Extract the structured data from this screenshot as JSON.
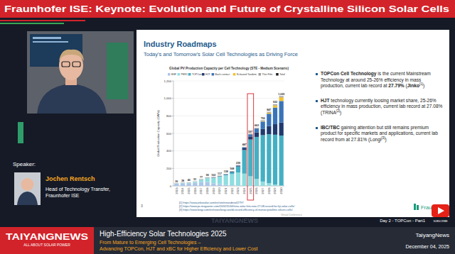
{
  "page": {
    "banner": "Fraunhofer ISE: Keynote: Evolution and Future of Crystalline Silicon Solar Cells",
    "speaker_label": "Speaker:",
    "speaker_name": "Jochen Rentsch",
    "speaker_role": "Head of Technology Transfer, Fraunhofer ISE",
    "event_logo": "TAIYANGNEWS",
    "event_tagline": "ALL ABOUT SOLAR POWER",
    "event_title": "High-Efficiency Solar Technologies 2025",
    "event_subtitle": "From Mature to Emerging Cell Technologies –",
    "event_subtitle2": "Advancing TOPCon, HJT and xBC for Higher Efficiency and Lower Cost",
    "session": "Day 2 - TOPCon - Part1",
    "brand": "TaiyangNews",
    "date": "December 04, 2025",
    "watermark": "TAIYANGNEWS",
    "subscribe": "SUBSCRIBE"
  },
  "slide": {
    "title": "Industry Roadmaps",
    "subtitle": "Today's and Tomorrow's Solar Cell Technologies as Driving Force",
    "bullets": [
      [
        {
          "text": "TOPCon Cell Technology",
          "bold": true
        },
        {
          "text": " is the current Mainstream Technology at around 25-26% efficiency in mass production, current lab record at "
        },
        {
          "text": "27.79%",
          "bold": true
        },
        {
          "text": " ("
        },
        {
          "text": "Jinko",
          "bold": true
        },
        {
          "text": "[1]",
          "sup": true
        },
        {
          "text": ")"
        }
      ],
      [
        {
          "text": "HJT",
          "bold": true
        },
        {
          "text": " technology currently loosing market share, 25-26% efficiency in mass production, current lab record at 27.08% (TRINA"
        },
        {
          "text": "[2]",
          "sup": true
        },
        {
          "text": ")"
        }
      ],
      [
        {
          "text": "IBC/TBC",
          "bold": true
        },
        {
          "text": " gaining attention but still remains premium product for specific markets and applications, current lab record from at 27.81% (Longi"
        },
        {
          "text": "[3]",
          "sup": true
        },
        {
          "text": ")"
        }
      ]
    ],
    "footnotes": [
      "[1] https://www.jinkosolar.com/en/site/newsdetail/2797",
      "[2] https://www.pv-magazine.com/2024/11/04/trina-solar-hits-new-27-08-record-for-hjt-solar-cells/",
      "[3] https://www.longi.com/en/news/longi-world-record-efficiency-of-monocrystalline-silicon-cells/"
    ],
    "page_number": "3",
    "footer": "Virtual Conference",
    "logo": "Fraunhofer"
  },
  "chart_data": {
    "type": "bar",
    "stacked": true,
    "title": "Global PV Production Capacity per Cell Technology (STE - Medium Scenario)",
    "y_label": "Global Production Capacity (GW/a)",
    "categories": [
      "2013",
      "2014",
      "2015",
      "2016",
      "2017",
      "2018",
      "2019",
      "2020",
      "2021",
      "2022",
      "2023",
      "2024",
      "2025",
      "2026",
      "2027",
      "2028",
      "2029",
      "2030"
    ],
    "series": [
      {
        "name": "BSF",
        "color": "#a9c6e8",
        "values": [
          25,
          30,
          30,
          36,
          45,
          45,
          30,
          20,
          10,
          5,
          2,
          0,
          0,
          0,
          0,
          0,
          0,
          0
        ]
      },
      {
        "name": "PERC",
        "color": "#8fdde0",
        "values": [
          2,
          4,
          6,
          10,
          26,
          47,
          63,
          85,
          110,
          130,
          150,
          140,
          110,
          80,
          50,
          30,
          15,
          5
        ]
      },
      {
        "name": "TOPCon",
        "color": "#45afc3",
        "values": [
          0,
          0,
          0,
          0,
          0,
          0,
          0,
          3,
          8,
          20,
          70,
          270,
          420,
          480,
          530,
          560,
          570,
          570
        ]
      },
      {
        "name": "HJT",
        "color": "#1f3a6e",
        "values": [
          0,
          0,
          0,
          0,
          0,
          0,
          2,
          3,
          4,
          6,
          8,
          20,
          35,
          50,
          70,
          95,
          120,
          150
        ]
      },
      {
        "name": "Back contact",
        "color": "#3a74b8",
        "values": [
          0,
          0,
          0,
          0,
          0,
          0,
          1,
          1,
          1,
          2,
          3,
          10,
          24,
          45,
          85,
          140,
          190,
          245
        ]
      },
      {
        "name": "Si-based Tandem",
        "color": "#f2c12e",
        "values": [
          0,
          0,
          0,
          0,
          0,
          0,
          0,
          0,
          0,
          0,
          0,
          0,
          0,
          0,
          5,
          12,
          25,
          42
        ]
      },
      {
        "name": "Thin Film",
        "color": "#9e9e9e",
        "values": [
          3,
          4,
          4,
          5,
          6,
          7,
          6,
          5,
          5,
          5,
          6,
          7,
          8,
          8,
          10,
          10,
          12,
          13
        ]
      },
      {
        "name": "Total",
        "color": "#222222",
        "type": "label",
        "values": [
          30,
          38,
          40,
          51,
          77,
          99,
          102,
          117,
          138,
          168,
          239,
          447,
          597,
          663,
          750,
          847,
          932,
          1025
        ],
        "value_labels": [
          "30",
          "38",
          "40",
          "51",
          "77",
          "99",
          "102",
          "117",
          "138",
          "168",
          "239",
          "447",
          "597",
          "663",
          "750",
          "847",
          "932",
          "1,025"
        ]
      }
    ],
    "data_labels": true,
    "legend": "top",
    "grid": true,
    "ylim": [
      0,
      1200
    ],
    "yticks": [
      0,
      200,
      400,
      600,
      800,
      {
        "value": 1000,
        "label": "1,000"
      },
      {
        "value": 1200,
        "label": "1,200"
      }
    ]
  }
}
